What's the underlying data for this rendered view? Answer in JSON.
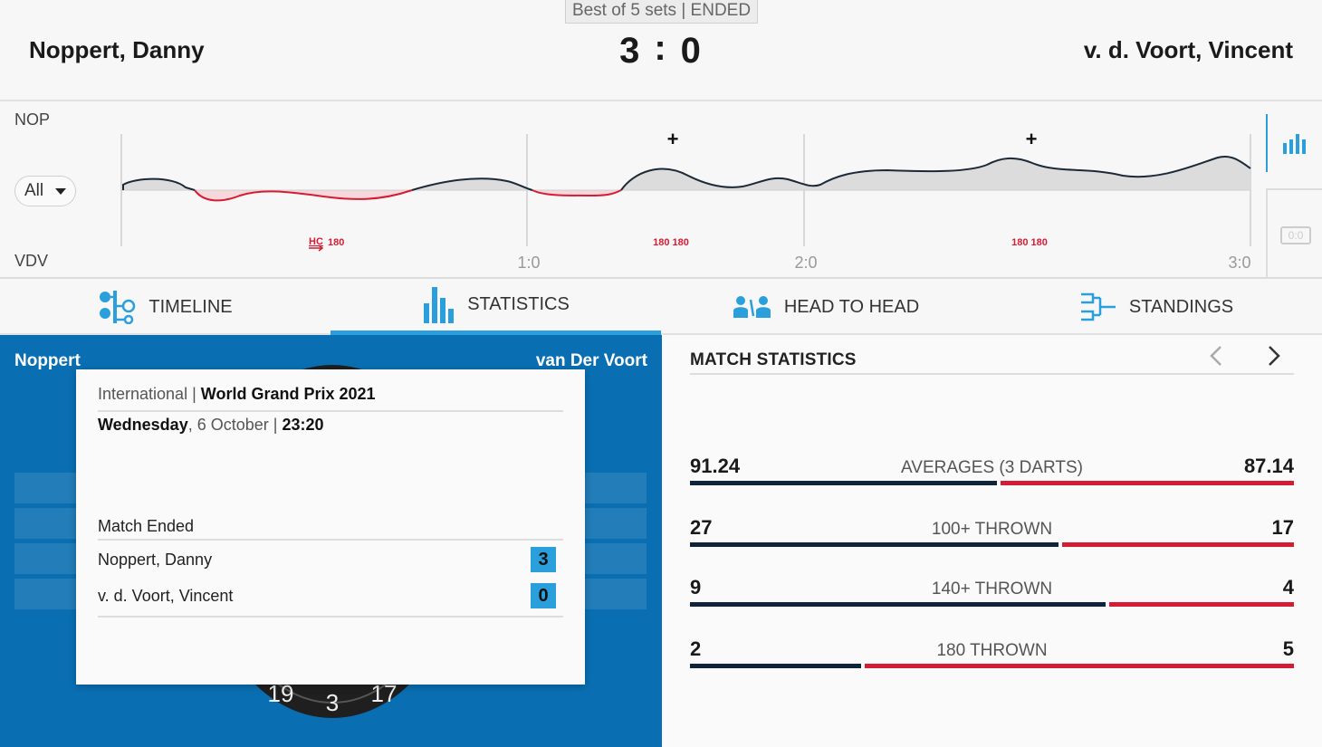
{
  "header": {
    "match_info": "Best of 5 sets | ENDED",
    "home_player": "Noppert, Danny",
    "away_player": "v. d. Voort, Vincent",
    "home_score": "3",
    "score_separator": ":",
    "away_score": "0"
  },
  "momentum": {
    "home_label": "NOP",
    "away_label": "VDV",
    "filter_value": "All",
    "set_markers": [
      "1:0",
      "2:0",
      "3:0"
    ],
    "event_labels": [
      {
        "hc": "HC",
        "value": "180"
      },
      {
        "value": "180 180"
      },
      {
        "value": "180 180"
      }
    ],
    "plus_markers": [
      "+",
      "+"
    ],
    "side_badge": "0:0"
  },
  "tabs": [
    {
      "label": "TIMELINE",
      "icon": "timeline-icon"
    },
    {
      "label": "STATISTICS",
      "icon": "statistics-icon",
      "active": true
    },
    {
      "label": "HEAD TO HEAD",
      "icon": "head-to-head-icon"
    },
    {
      "label": "STANDINGS",
      "icon": "standings-icon"
    }
  ],
  "left_panel": {
    "home_short": "Noppert",
    "away_short": "van Der Voort",
    "board_numbers": [
      "19",
      "3",
      "17"
    ],
    "popup": {
      "category": "International",
      "separator": "|",
      "tournament": "World Grand Prix 2021",
      "weekday": "Wednesday",
      "date": ", 6 October",
      "time_separator": "|",
      "time": "23:20",
      "status": "Match Ended",
      "home_player": "Noppert, Danny",
      "home_score": "3",
      "away_player": "v. d. Voort, Vincent",
      "away_score": "0"
    }
  },
  "match_statistics": {
    "title": "MATCH STATISTICS",
    "colors": {
      "home": "#0f2438",
      "away": "#d51c35"
    },
    "rows": [
      {
        "label": "AVERAGES (3 DARTS)",
        "home": "91.24",
        "away": "87.14",
        "home_value": 91.24,
        "away_value": 87.14
      },
      {
        "label": "100+ THROWN",
        "home": "27",
        "away": "17",
        "home_value": 27,
        "away_value": 17
      },
      {
        "label": "140+ THROWN",
        "home": "9",
        "away": "4",
        "home_value": 9,
        "away_value": 4
      },
      {
        "label": "180 THROWN",
        "home": "2",
        "away": "5",
        "home_value": 2,
        "away_value": 5
      }
    ]
  }
}
